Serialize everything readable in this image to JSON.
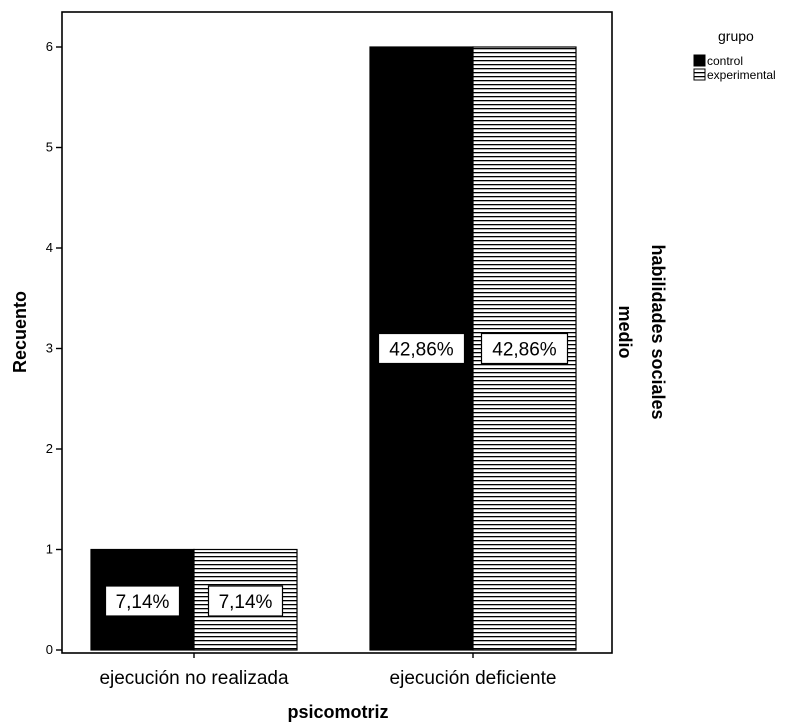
{
  "chart_data": {
    "type": "bar",
    "categories": [
      "ejecución no realizada",
      "ejecución deficiente"
    ],
    "series": [
      {
        "name": "control",
        "values": [
          1,
          6
        ],
        "labels": [
          "7,14%",
          "42,86%"
        ],
        "color": "#000000",
        "fill": "solid"
      },
      {
        "name": "experimental",
        "values": [
          1,
          6
        ],
        "labels": [
          "7,14%",
          "42,86%"
        ],
        "color": "#ffffff",
        "fill": "horizontal-stripes"
      }
    ],
    "xlabel": "psicomotriz",
    "ylabel": "Recuento",
    "ylim": [
      0,
      6.3
    ],
    "yticks": [
      0,
      1,
      2,
      3,
      4,
      5,
      6
    ],
    "legend": {
      "title": "grupo",
      "position": "top-right"
    },
    "panel": {
      "title": "habilidades sociales",
      "value": "medio"
    },
    "grid": false
  }
}
